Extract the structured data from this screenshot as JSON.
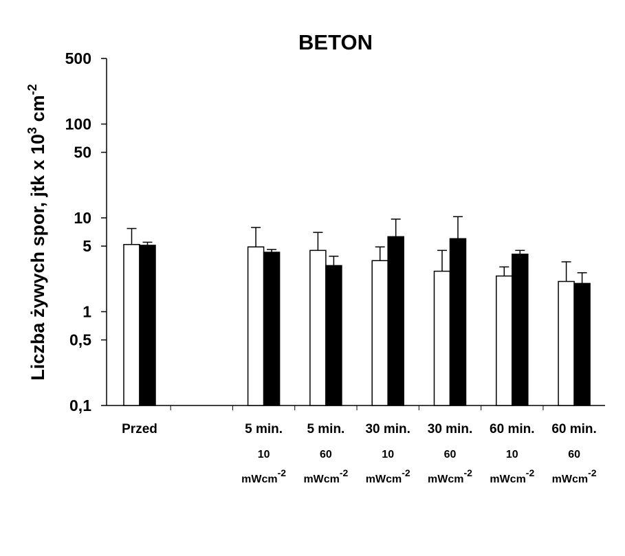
{
  "chart_data": {
    "type": "bar",
    "title": "BETON",
    "ylabel": "Liczba żywych spor,  jtk x 10",
    "ylabel_sup": "3",
    "ylabel_unit": " cm",
    "ylabel_unit_sup": "-2",
    "yscale": "log",
    "ylim": [
      0.1,
      500
    ],
    "yticks": [
      {
        "value": 0.1,
        "label": "0,1"
      },
      {
        "value": 0.5,
        "label": "0,5"
      },
      {
        "value": 1,
        "label": "1"
      },
      {
        "value": 5,
        "label": "5"
      },
      {
        "value": 10,
        "label": "10"
      },
      {
        "value": 50,
        "label": "50"
      },
      {
        "value": 100,
        "label": "100"
      },
      {
        "value": 500,
        "label": "500"
      }
    ],
    "categories": [
      {
        "line1": "Przed",
        "line2": "",
        "line3": ""
      },
      {
        "line1": "",
        "line2": "",
        "line3": ""
      },
      {
        "line1": "5 min.",
        "line2": "10",
        "line3": "mWcm",
        "sup": "-2"
      },
      {
        "line1": "5 min.",
        "line2": "60",
        "line3": "mWcm",
        "sup": "-2"
      },
      {
        "line1": "30 min.",
        "line2": "10",
        "line3": "mWcm",
        "sup": "-2"
      },
      {
        "line1": "30 min.",
        "line2": "60",
        "line3": "mWcm",
        "sup": "-2"
      },
      {
        "line1": "60 min.",
        "line2": "10",
        "line3": "mWcm",
        "sup": "-2"
      },
      {
        "line1": "60 min.",
        "line2": "60",
        "line3": "mWcm",
        "sup": "-2"
      }
    ],
    "series": [
      {
        "name": "white",
        "color": "#ffffff",
        "values": [
          5.2,
          null,
          4.9,
          4.5,
          3.5,
          2.7,
          2.4,
          2.1
        ],
        "error_top": [
          7.7,
          null,
          7.9,
          7.0,
          4.9,
          4.5,
          3.0,
          3.4
        ]
      },
      {
        "name": "black",
        "color": "#000000",
        "values": [
          5.1,
          null,
          4.3,
          3.1,
          6.3,
          6.0,
          4.1,
          2.0
        ],
        "error_top": [
          5.5,
          null,
          4.6,
          3.9,
          9.7,
          10.3,
          4.5,
          2.6
        ]
      }
    ],
    "legend": "none",
    "grid": false
  }
}
